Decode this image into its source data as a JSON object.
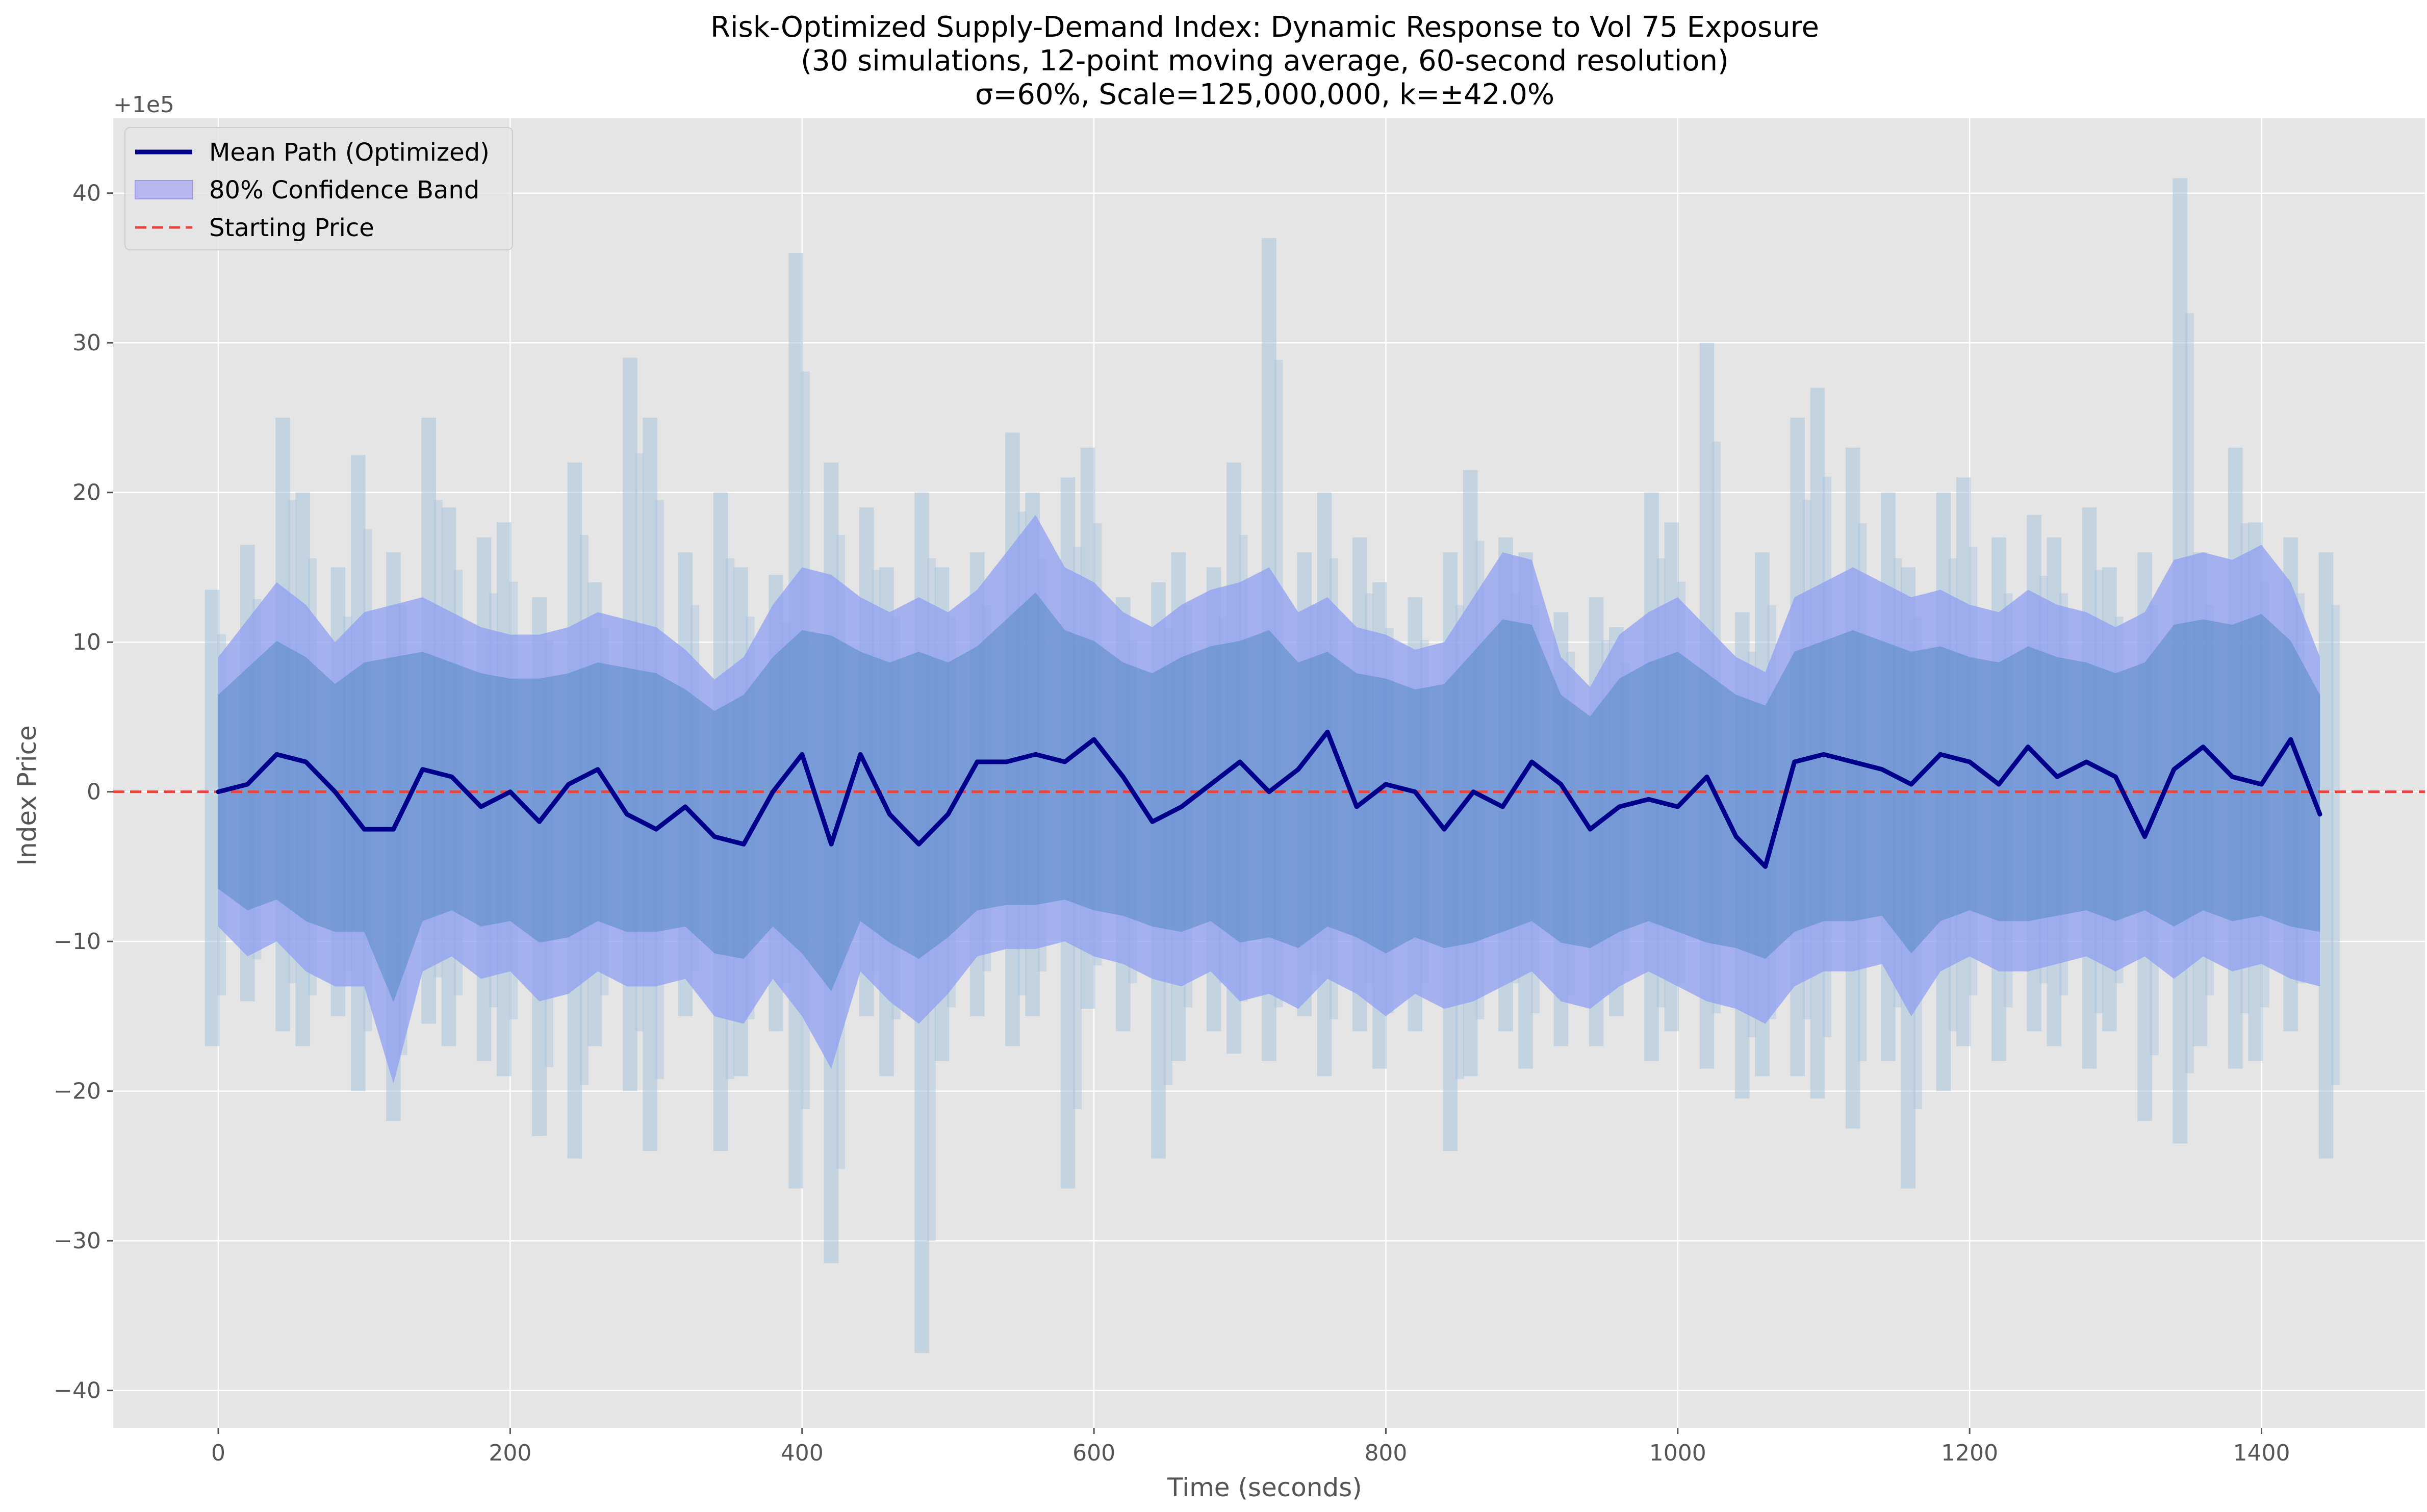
{
  "chart_data": {
    "type": "line",
    "title": [
      "Risk-Optimized Supply-Demand Index: Dynamic Response to Vol 75 Exposure",
      "(30 simulations, 12-point moving average, 60-second resolution)",
      "σ=60%, Scale=125,000,000, k=±42.0%"
    ],
    "xlabel": "Time (seconds)",
    "ylabel": "Index Price",
    "y_offset_label": "+1e5",
    "xlim": [
      -72,
      1512
    ],
    "ylim": [
      -42.5,
      45
    ],
    "x_ticks": [
      0,
      200,
      400,
      600,
      800,
      1000,
      1200,
      1400
    ],
    "x_tick_labels": [
      "0",
      "200",
      "400",
      "600",
      "800",
      "1000",
      "1200",
      "1400"
    ],
    "y_ticks": [
      -40,
      -30,
      -20,
      -10,
      0,
      10,
      20,
      30,
      40
    ],
    "y_tick_labels": [
      "−40",
      "−30",
      "−20",
      "−10",
      "0",
      "10",
      "20",
      "30",
      "40"
    ],
    "grid": true,
    "legend_position": "top-left",
    "legend": [
      {
        "label": "Mean Path (Optimized)",
        "kind": "line",
        "color": "#00008b"
      },
      {
        "label": "80% Confidence Band",
        "kind": "patch",
        "color": "#b7b7ee"
      },
      {
        "label": "Starting Price",
        "kind": "dashed",
        "color": "#e8453c"
      }
    ],
    "colors": {
      "plot_background": "#e5e5e5",
      "grid": "#ffffff",
      "simulation_envelope": "#a9c4dc",
      "confidence_band": "#8f9ff0",
      "band_core": "#5589c4",
      "mean_path": "#00008b",
      "starting_price": "#e8453c"
    },
    "starting_price": 0,
    "x": [
      0,
      20,
      40,
      60,
      80,
      100,
      120,
      140,
      160,
      180,
      200,
      220,
      240,
      260,
      280,
      300,
      320,
      340,
      360,
      380,
      400,
      420,
      440,
      460,
      480,
      500,
      520,
      540,
      560,
      580,
      600,
      620,
      640,
      660,
      680,
      700,
      720,
      740,
      760,
      780,
      800,
      820,
      840,
      860,
      880,
      900,
      920,
      940,
      960,
      980,
      1000,
      1020,
      1040,
      1060,
      1080,
      1100,
      1120,
      1140,
      1160,
      1180,
      1200,
      1220,
      1240,
      1260,
      1280,
      1300,
      1320,
      1340,
      1360,
      1380,
      1400,
      1420,
      1440
    ],
    "series": [
      {
        "name": "Mean Path (Optimized)",
        "values": [
          0,
          0.5,
          2.5,
          2.0,
          0,
          -2.5,
          -2.5,
          1.5,
          1.0,
          -1.0,
          0,
          -2.0,
          0.5,
          1.5,
          -1.5,
          -2.5,
          -1.0,
          -3.0,
          -3.5,
          0,
          2.5,
          -3.5,
          2.5,
          -1.5,
          -3.5,
          -1.5,
          2.0,
          2.0,
          2.5,
          2.0,
          3.5,
          1.0,
          -2.0,
          -1.0,
          0.5,
          2.0,
          0,
          1.5,
          4.0,
          -1.0,
          0.5,
          0,
          -2.5,
          0,
          -1.0,
          2.0,
          0.5,
          -2.5,
          -1.0,
          -0.5,
          -1.0,
          1.0,
          -3.0,
          -5.0,
          2.0,
          2.5,
          2.0,
          1.5,
          0.5,
          2.5,
          2.0,
          0.5,
          3.0,
          1.0,
          2.0,
          1.0,
          -3.0,
          1.5,
          3.0,
          1.0,
          0.5,
          3.5,
          -1.5
        ]
      },
      {
        "name": "80% Confidence Band",
        "upper": [
          9.0,
          11.5,
          14.0,
          12.5,
          10.0,
          12.0,
          12.5,
          13.0,
          12.0,
          11.0,
          10.5,
          10.5,
          11.0,
          12.0,
          11.5,
          11.0,
          9.5,
          7.5,
          9.0,
          12.5,
          15.0,
          14.5,
          13.0,
          12.0,
          13.0,
          12.0,
          13.5,
          16.0,
          18.5,
          15.0,
          14.0,
          12.0,
          11.0,
          12.5,
          13.5,
          14.0,
          15.0,
          12.0,
          13.0,
          11.0,
          10.5,
          9.5,
          10.0,
          13.0,
          16.0,
          15.5,
          9.0,
          7.0,
          10.5,
          12.0,
          13.0,
          11.0,
          9.0,
          8.0,
          13.0,
          14.0,
          15.0,
          14.0,
          13.0,
          13.5,
          12.5,
          12.0,
          13.5,
          12.5,
          12.0,
          11.0,
          12.0,
          15.5,
          16.0,
          15.5,
          16.5,
          14.0,
          9.0
        ],
        "lower": [
          -9.0,
          -11.0,
          -10.0,
          -12.0,
          -13.0,
          -13.0,
          -19.5,
          -12.0,
          -11.0,
          -12.5,
          -12.0,
          -14.0,
          -13.5,
          -12.0,
          -13.0,
          -13.0,
          -12.5,
          -15.0,
          -15.5,
          -12.5,
          -15.0,
          -18.5,
          -12.0,
          -14.0,
          -15.5,
          -13.5,
          -11.0,
          -10.5,
          -10.5,
          -10.0,
          -11.0,
          -11.5,
          -12.5,
          -13.0,
          -12.0,
          -14.0,
          -13.5,
          -14.5,
          -12.5,
          -13.5,
          -15.0,
          -13.5,
          -14.5,
          -14.0,
          -13.0,
          -12.0,
          -14.0,
          -14.5,
          -13.0,
          -12.0,
          -13.0,
          -14.0,
          -14.5,
          -15.5,
          -13.0,
          -12.0,
          -12.0,
          -11.5,
          -15.0,
          -12.0,
          -11.0,
          -12.0,
          -12.0,
          -11.5,
          -11.0,
          -12.0,
          -11.0,
          -12.5,
          -11.0,
          -12.0,
          -11.5,
          -12.5,
          -13.0
        ]
      },
      {
        "name": "Simulation Envelope",
        "upper": [
          13.5,
          16.5,
          25.0,
          20.0,
          15.0,
          22.5,
          16.0,
          25.0,
          19.0,
          17.0,
          18.0,
          13.0,
          22.0,
          14.0,
          29.0,
          25.0,
          16.0,
          20.0,
          15.0,
          14.5,
          36.0,
          22.0,
          19.0,
          15.0,
          20.0,
          15.0,
          16.0,
          24.0,
          20.0,
          21.0,
          23.0,
          13.0,
          14.0,
          16.0,
          15.0,
          22.0,
          37.0,
          16.0,
          20.0,
          17.0,
          14.0,
          13.0,
          16.0,
          21.5,
          17.0,
          16.0,
          12.0,
          13.0,
          11.0,
          20.0,
          18.0,
          30.0,
          12.0,
          16.0,
          25.0,
          27.0,
          23.0,
          20.0,
          15.0,
          20.0,
          21.0,
          17.0,
          18.5,
          17.0,
          19.0,
          15.0,
          16.0,
          41.0,
          16.0,
          23.0,
          18.0,
          17.0,
          16.0
        ],
        "lower": [
          -17.0,
          -14.0,
          -16.0,
          -17.0,
          -15.0,
          -20.0,
          -22.0,
          -15.5,
          -17.0,
          -18.0,
          -19.0,
          -23.0,
          -24.5,
          -17.0,
          -20.0,
          -24.0,
          -15.0,
          -24.0,
          -19.0,
          -16.0,
          -26.5,
          -31.5,
          -15.0,
          -19.0,
          -37.5,
          -18.0,
          -15.0,
          -17.0,
          -15.0,
          -26.5,
          -14.5,
          -16.0,
          -24.5,
          -18.0,
          -16.0,
          -17.5,
          -18.0,
          -15.0,
          -19.0,
          -16.0,
          -18.5,
          -16.0,
          -24.0,
          -19.0,
          -16.0,
          -18.5,
          -17.0,
          -17.0,
          -15.0,
          -18.0,
          -16.0,
          -18.5,
          -20.5,
          -19.0,
          -19.0,
          -20.5,
          -22.5,
          -18.0,
          -26.5,
          -20.0,
          -17.0,
          -18.0,
          -16.0,
          -17.0,
          -18.5,
          -16.0,
          -22.0,
          -23.5,
          -17.0,
          -18.5,
          -18.0,
          -16.0,
          -24.5
        ]
      }
    ]
  }
}
